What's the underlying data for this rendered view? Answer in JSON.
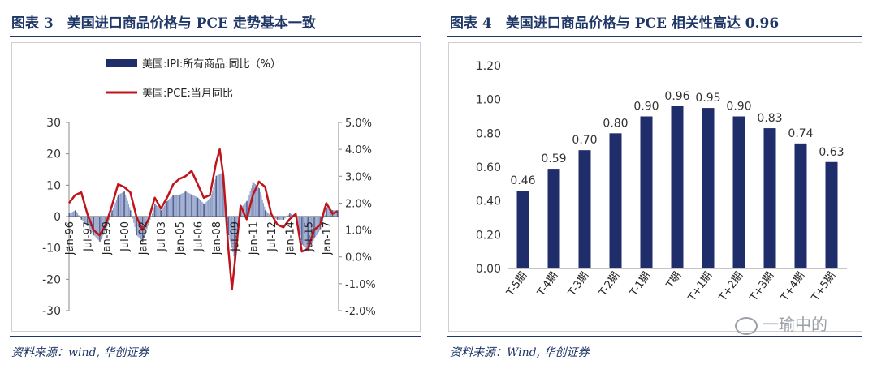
{
  "panel_left": {
    "title": "图表 3　美国进口商品价格与 PCE 走势基本一致",
    "source": "资料来源：wind, 华创证券"
  },
  "panel_right": {
    "title": "图表 4　美国进口商品价格与 PCE 相关性高达 0.96",
    "source": "资料来源：Wind, 华创证券"
  },
  "watermark": "一瑜中的",
  "colors": {
    "bar": "#1f2d6b",
    "line": "#c0141b",
    "title": "#1f3766",
    "light_bar": "#8f9fc7"
  },
  "chart_data": [
    {
      "type": "bar+line",
      "title": "",
      "legend_position": "top",
      "legend": [
        "美国:IPI:所有商品:同比（%）",
        "美国:PCE:当月同比"
      ],
      "left_axis": {
        "ylim": [
          -30,
          30
        ],
        "ticks": [
          "30",
          "20",
          "10",
          "0",
          "-10",
          "-20",
          "-30"
        ]
      },
      "right_axis": {
        "ylim": [
          -2.0,
          5.0
        ],
        "ticks": [
          "5.0%",
          "4.0%",
          "3.0%",
          "2.0%",
          "1.0%",
          "0.0%",
          "-1.0%",
          "-2.0%"
        ]
      },
      "x_ticks": [
        "Jan-96",
        "Jul-97",
        "Jan-99",
        "Jul-00",
        "Jan-02",
        "Jul-03",
        "Jan-05",
        "Jul-06",
        "Jan-08",
        "Jul-09",
        "Jan-11",
        "Jul-12",
        "Jan-14",
        "Jul-15",
        "Jan-17"
      ],
      "x_range": [
        "1996-01",
        "2017-12"
      ],
      "series": [
        {
          "name": "美国:IPI:所有商品:同比（%）",
          "kind": "bar",
          "axis": "left",
          "x": [
            1996.0,
            1996.5,
            1997.0,
            1997.5,
            1998.0,
            1998.5,
            1999.0,
            1999.5,
            2000.0,
            2000.5,
            2001.0,
            2001.5,
            2002.0,
            2002.5,
            2003.0,
            2003.5,
            2004.0,
            2004.5,
            2005.0,
            2005.5,
            2006.0,
            2006.5,
            2007.0,
            2007.5,
            2008.0,
            2008.5,
            2009.0,
            2009.5,
            2010.0,
            2010.5,
            2011.0,
            2011.5,
            2012.0,
            2012.5,
            2013.0,
            2013.5,
            2014.0,
            2014.5,
            2015.0,
            2015.5,
            2016.0,
            2016.5,
            2017.0,
            2017.5,
            2017.9
          ],
          "values": [
            1,
            2,
            -1,
            -3,
            -6,
            -8,
            -4,
            2,
            7,
            8,
            2,
            -6,
            -8,
            -2,
            4,
            2,
            5,
            7,
            7,
            8,
            7,
            6,
            4,
            6,
            13,
            14,
            -6,
            -14,
            3,
            5,
            11,
            9,
            2,
            0,
            -1,
            -1,
            1,
            0,
            -9,
            -11,
            -7,
            -4,
            3,
            2,
            2
          ]
        },
        {
          "name": "美国:PCE:当月同比",
          "kind": "line",
          "axis": "right",
          "x": [
            1996.0,
            1996.5,
            1997.0,
            1997.5,
            1998.0,
            1998.5,
            1999.0,
            1999.5,
            2000.0,
            2000.5,
            2001.0,
            2001.5,
            2002.0,
            2002.5,
            2003.0,
            2003.5,
            2004.0,
            2004.5,
            2005.0,
            2005.5,
            2006.0,
            2006.5,
            2007.0,
            2007.5,
            2008.0,
            2008.3,
            2008.6,
            2009.0,
            2009.3,
            2009.6,
            2010.0,
            2010.5,
            2011.0,
            2011.5,
            2012.0,
            2012.5,
            2013.0,
            2013.5,
            2014.0,
            2014.5,
            2015.0,
            2015.5,
            2016.0,
            2016.5,
            2017.0,
            2017.5,
            2017.9
          ],
          "values": [
            2.0,
            2.3,
            2.4,
            1.6,
            1.0,
            0.8,
            1.2,
            1.9,
            2.7,
            2.6,
            2.4,
            1.5,
            1.0,
            1.4,
            2.2,
            1.8,
            2.2,
            2.7,
            2.9,
            3.0,
            3.2,
            2.7,
            2.2,
            2.3,
            3.5,
            4.0,
            3.0,
            0.3,
            -1.2,
            0.1,
            1.9,
            1.4,
            2.3,
            2.8,
            2.6,
            1.6,
            1.2,
            1.1,
            1.4,
            1.6,
            0.2,
            0.3,
            1.0,
            1.2,
            2.0,
            1.6,
            1.7
          ]
        }
      ]
    },
    {
      "type": "bar",
      "title": "",
      "categories": [
        "T-5期",
        "T-4期",
        "T-3期",
        "T-2期",
        "T-1期",
        "T期",
        "T+1期",
        "T+2期",
        "T+3期",
        "T+4期",
        "T+5期"
      ],
      "values": [
        0.46,
        0.59,
        0.7,
        0.8,
        0.9,
        0.96,
        0.95,
        0.9,
        0.83,
        0.74,
        0.63
      ],
      "data_labels": [
        "0.46",
        "0.59",
        "0.70",
        "0.80",
        "0.90",
        "0.96",
        "0.95",
        "0.90",
        "0.83",
        "0.74",
        "0.63"
      ],
      "ylim": [
        0.0,
        1.2
      ],
      "y_ticks": [
        "1.20",
        "1.00",
        "0.80",
        "0.60",
        "0.40",
        "0.20",
        "0.00"
      ],
      "grid": false
    }
  ]
}
